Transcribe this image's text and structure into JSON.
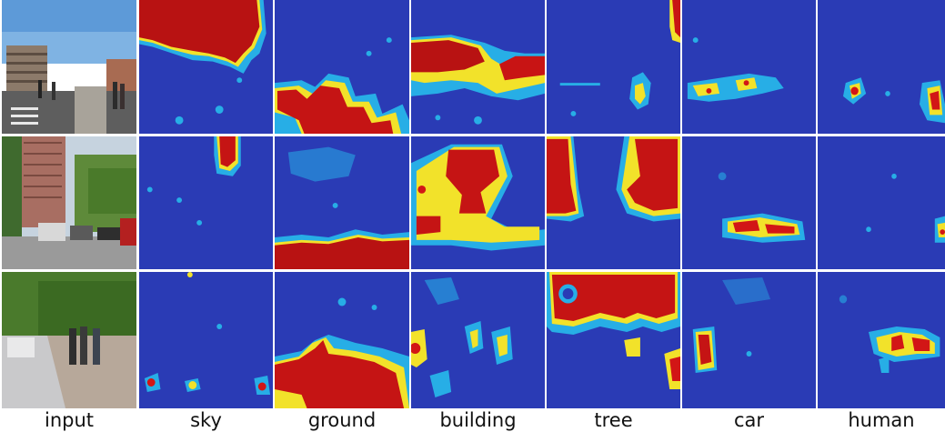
{
  "labels": [
    "input",
    "sky",
    "ground",
    "building",
    "tree",
    "car",
    "human"
  ],
  "colors": {
    "background": "#2a3bb5",
    "low": "#27aee6",
    "mid": "#f2e22a",
    "high": "#d21616",
    "peak": "#a80d0d"
  },
  "rows": [
    {
      "scene": "street with parking garage and crosswalk pedestrians"
    },
    {
      "scene": "street with tall brick building and parked cars"
    },
    {
      "scene": "sidewalk with trees and walking pedestrians"
    }
  ]
}
